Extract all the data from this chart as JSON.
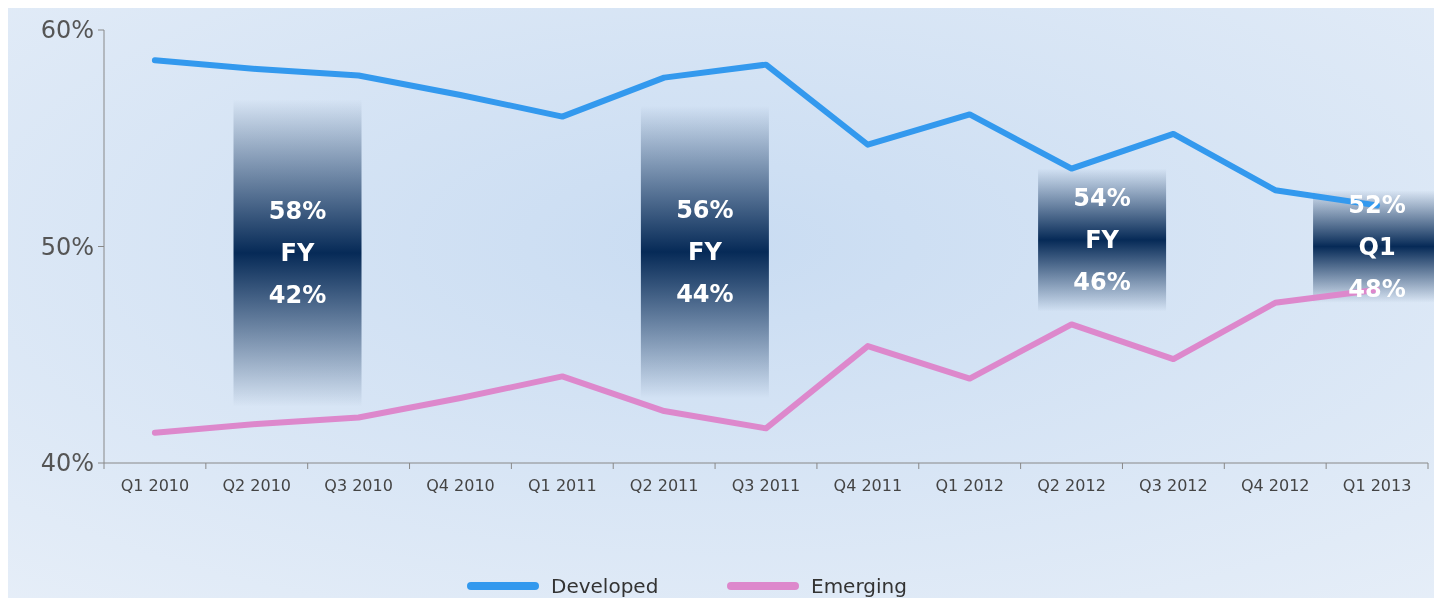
{
  "chart_data": {
    "type": "line",
    "categories": [
      "Q1 2010",
      "Q2 2010",
      "Q3 2010",
      "Q4 2010",
      "Q1 2011",
      "Q2 2011",
      "Q3 2011",
      "Q4 2011",
      "Q1 2012",
      "Q2 2012",
      "Q3 2012",
      "Q4 2012",
      "Q1 2013"
    ],
    "series": [
      {
        "name": "Developed",
        "color": "#3399ee",
        "values": [
          58.6,
          58.2,
          57.9,
          57.0,
          56.0,
          57.8,
          58.4,
          54.7,
          56.1,
          53.6,
          55.2,
          52.6,
          51.9
        ]
      },
      {
        "name": "Emerging",
        "color": "#dd88cc",
        "values": [
          41.4,
          41.8,
          42.1,
          43.0,
          44.0,
          42.4,
          41.6,
          45.4,
          43.9,
          46.4,
          44.8,
          47.4,
          48.0
        ]
      }
    ],
    "ylim": [
      40,
      60
    ],
    "yticks": [
      {
        "value": 40,
        "label": "40%"
      },
      {
        "value": 50,
        "label": "50%"
      },
      {
        "value": 60,
        "label": "60%"
      }
    ],
    "grid": false,
    "legend": "bottom",
    "marker": "none",
    "line_style": "solid",
    "annotations": [
      "58%\nFY\n42%",
      "56%\nFY\n44%",
      "54%\nFY\n46%",
      "52%\nQ1\n48%"
    ]
  }
}
